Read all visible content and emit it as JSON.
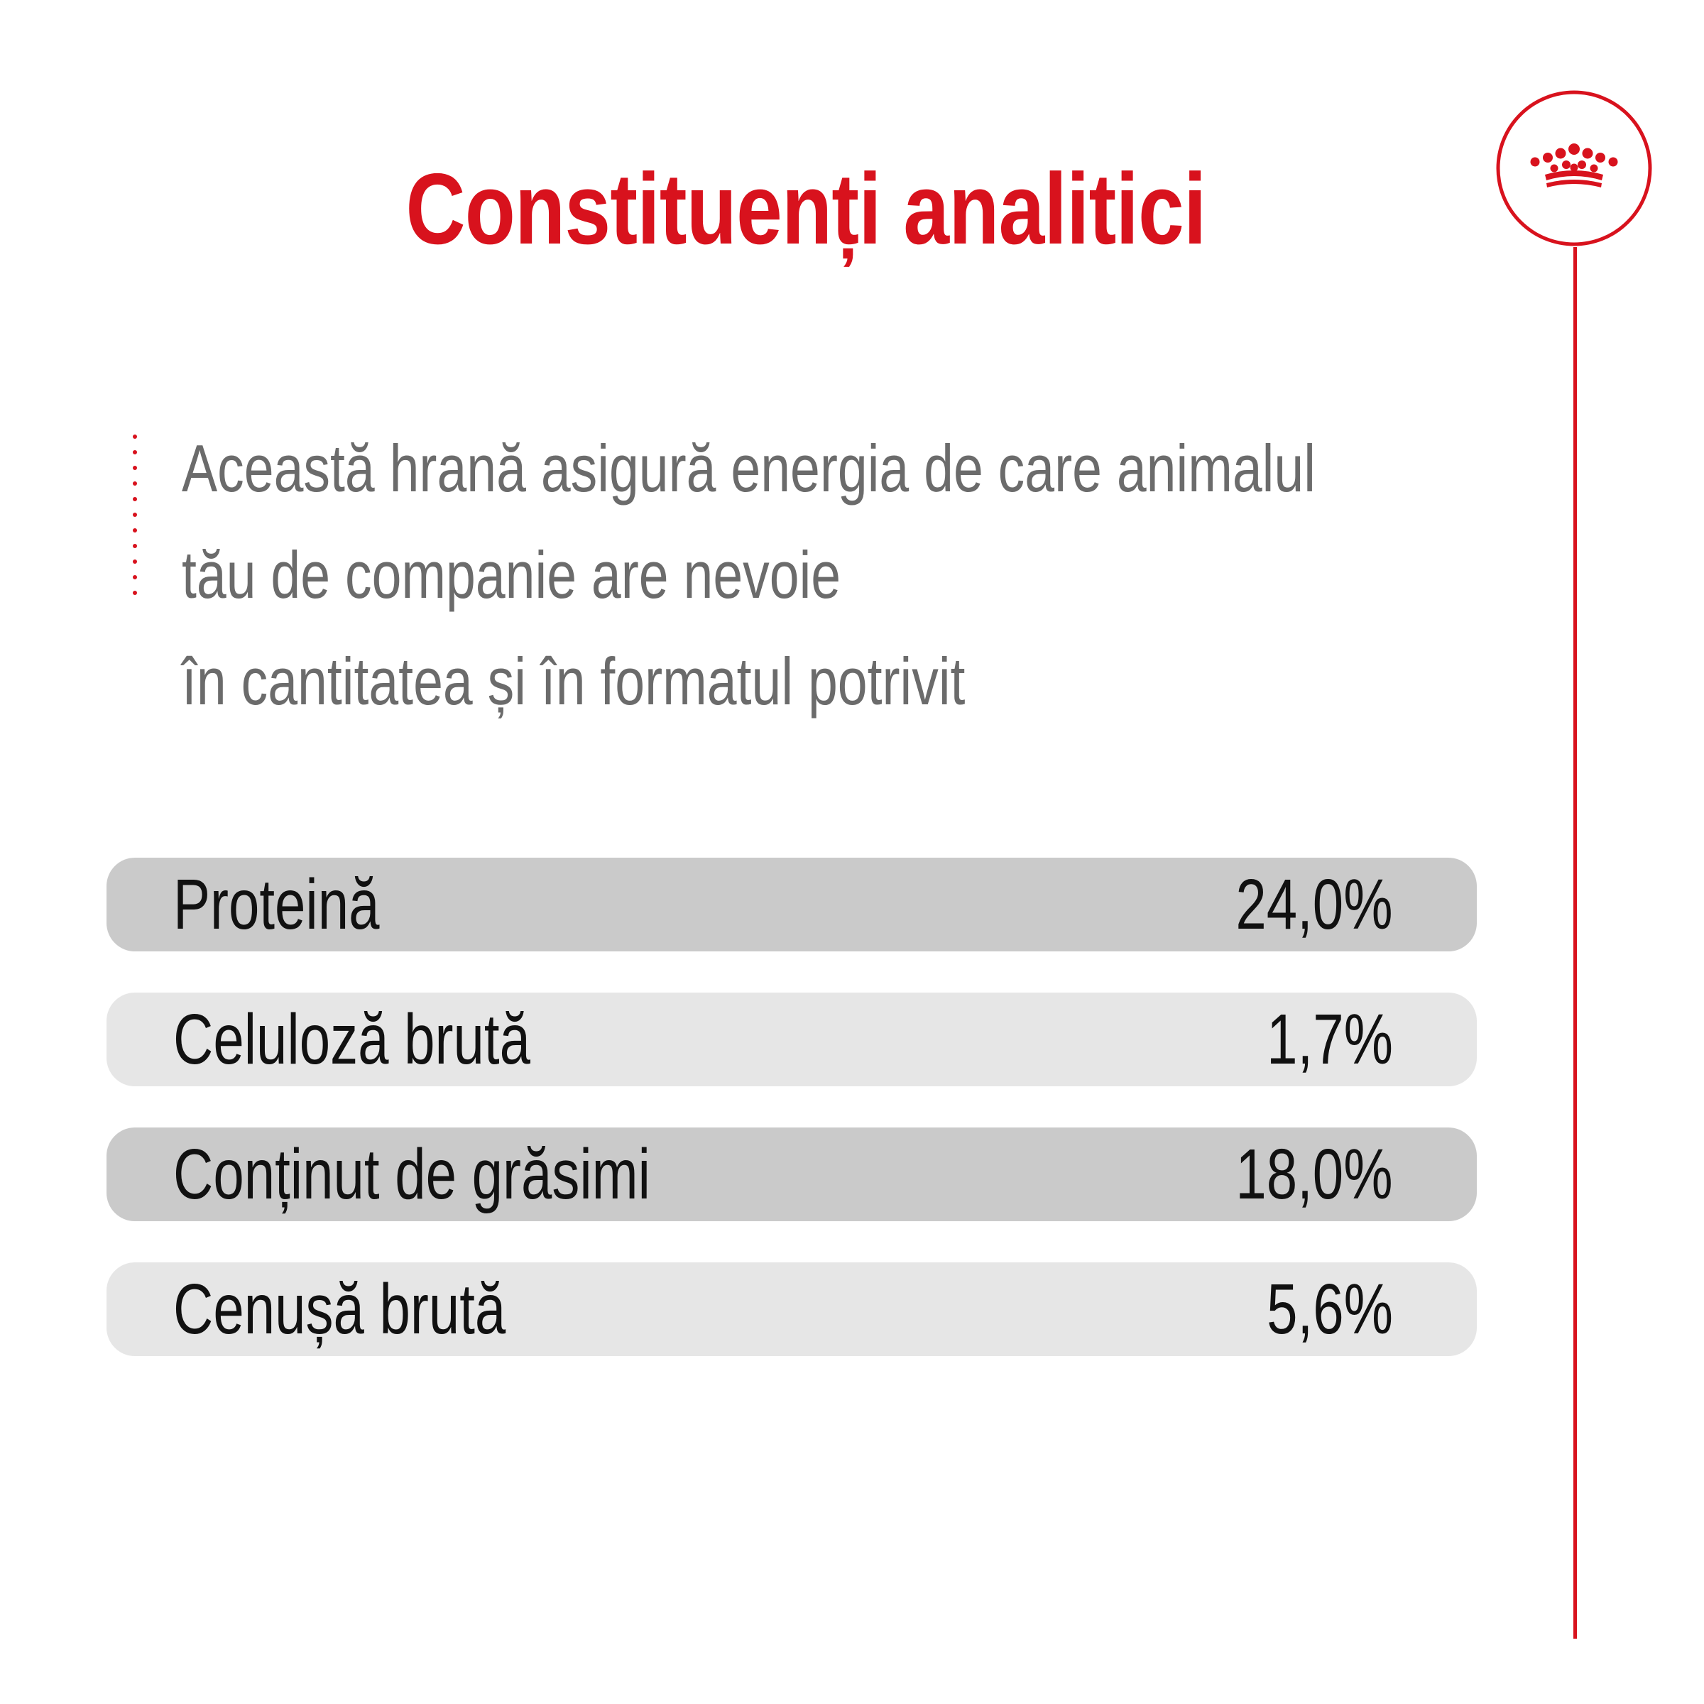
{
  "title": "Constituenți analitici",
  "description": {
    "lines": [
      "Această hrană asigură energia de care animalul",
      "tău de companie are nevoie",
      "în cantitatea și în formatul potrivit"
    ]
  },
  "constituents": [
    {
      "label": "Proteină",
      "value": "24,0%"
    },
    {
      "label": "Celuloză brută",
      "value": "1,7%"
    },
    {
      "label": "Conținut de grăsimi",
      "value": "18,0%"
    },
    {
      "label": "Cenușă brută",
      "value": "5,6%"
    }
  ],
  "logo": {
    "icon": "crown-icon"
  },
  "colors": {
    "accent": "#d8121d",
    "text_gray": "#6b6b6b",
    "row_dark": "#cacaca",
    "row_light": "#e6e6e6",
    "text_dark": "#111111"
  }
}
